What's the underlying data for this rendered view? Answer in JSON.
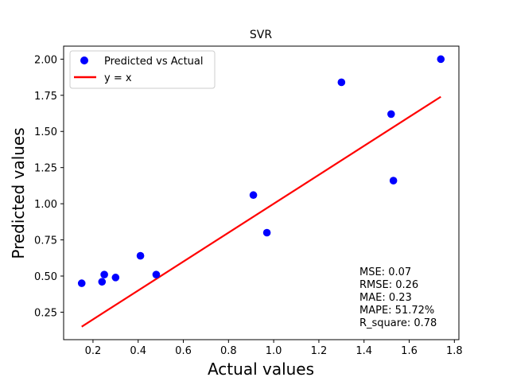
{
  "chart_data": {
    "type": "scatter",
    "title": "SVR",
    "xlabel": "Actual values",
    "ylabel": "Predicted values",
    "xlim": [
      0.07,
      1.82
    ],
    "ylim": [
      0.06,
      2.09
    ],
    "x_ticks": [
      0.2,
      0.4,
      0.6,
      0.8,
      1.0,
      1.2,
      1.4,
      1.6,
      1.8
    ],
    "x_tick_labels": [
      "0.2",
      "0.4",
      "0.6",
      "0.8",
      "1.0",
      "1.2",
      "1.4",
      "1.6",
      "1.8"
    ],
    "y_ticks": [
      0.25,
      0.5,
      0.75,
      1.0,
      1.25,
      1.5,
      1.75,
      2.0
    ],
    "y_tick_labels": [
      "0.25",
      "0.50",
      "0.75",
      "1.00",
      "1.25",
      "1.50",
      "1.75",
      "2.00"
    ],
    "grid": false,
    "legend_position": "top-left",
    "series": [
      {
        "name": "Predicted vs Actual",
        "kind": "scatter",
        "color": "#0000ff",
        "points": [
          {
            "x": 0.15,
            "y": 0.45
          },
          {
            "x": 0.24,
            "y": 0.46
          },
          {
            "x": 0.25,
            "y": 0.51
          },
          {
            "x": 0.3,
            "y": 0.49
          },
          {
            "x": 0.41,
            "y": 0.64
          },
          {
            "x": 0.48,
            "y": 0.51
          },
          {
            "x": 0.91,
            "y": 1.06
          },
          {
            "x": 0.97,
            "y": 0.8
          },
          {
            "x": 1.3,
            "y": 1.84
          },
          {
            "x": 1.52,
            "y": 1.62
          },
          {
            "x": 1.53,
            "y": 1.16
          },
          {
            "x": 1.74,
            "y": 2.0
          }
        ]
      },
      {
        "name": "y = x",
        "kind": "line",
        "color": "#ff0000",
        "points": [
          {
            "x": 0.15,
            "y": 0.15
          },
          {
            "x": 1.74,
            "y": 1.74
          }
        ]
      }
    ],
    "annotation_lines": [
      "MSE: 0.07",
      "RMSE: 0.26",
      "MAE: 0.23",
      "MAPE: 51.72%",
      "R_square: 0.78"
    ]
  }
}
